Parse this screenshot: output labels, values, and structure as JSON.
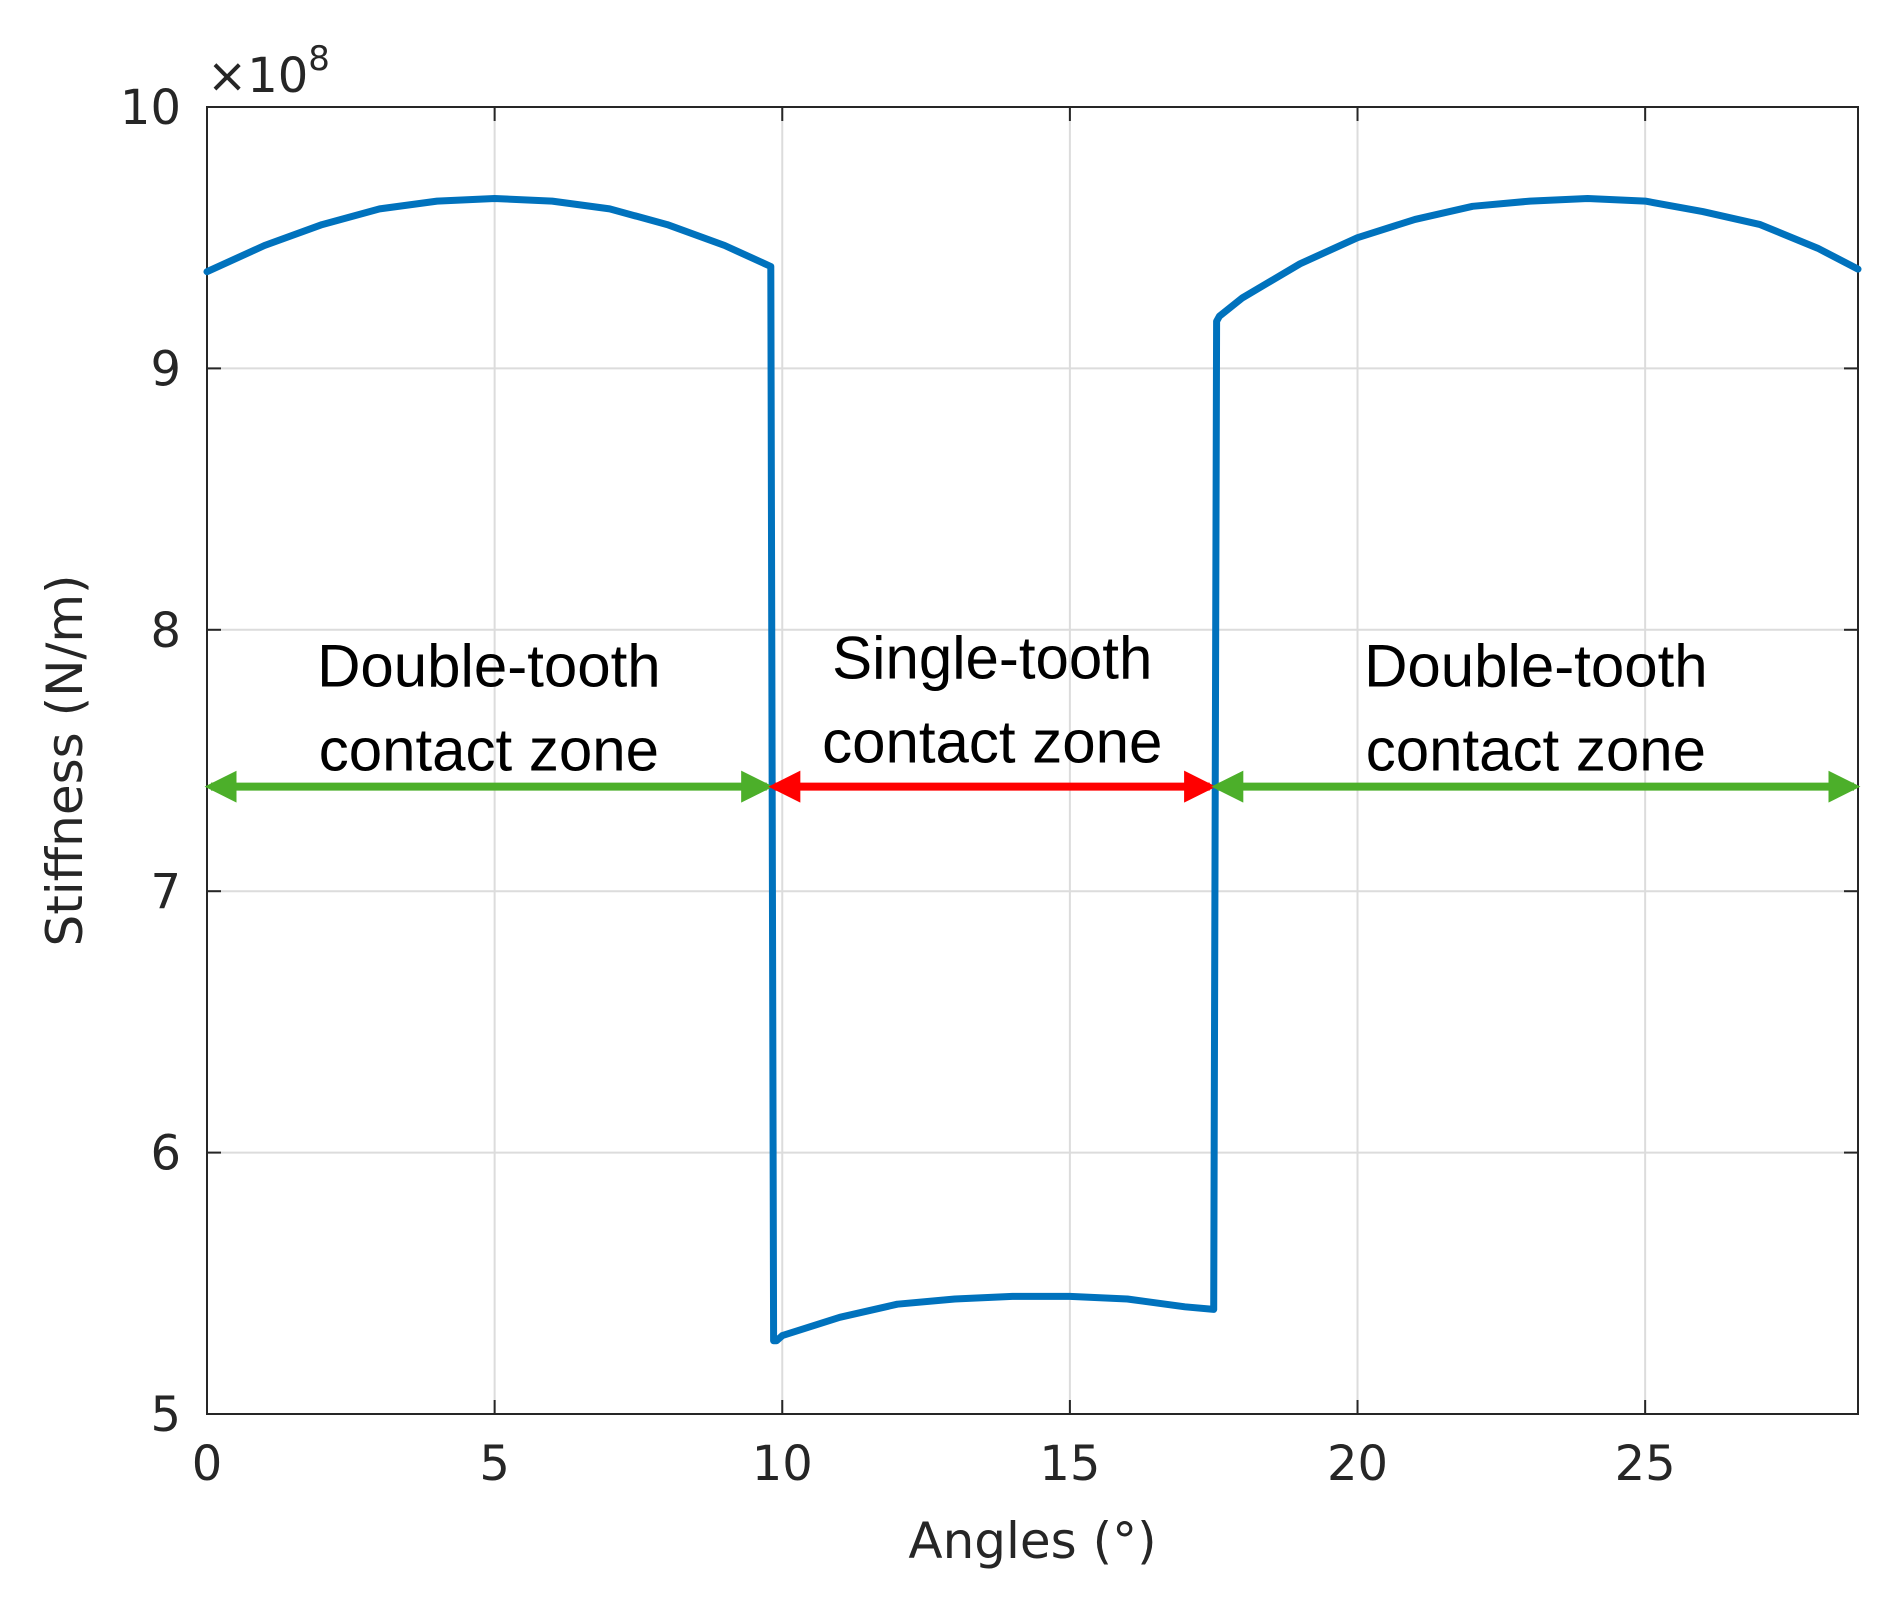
{
  "chart_data": {
    "type": "line",
    "xlabel": "Angles (°)",
    "ylabel": "Stiffness (N/m)",
    "y_exponent_label": "×10",
    "y_exponent_power": "8",
    "xlim": [
      0,
      28.7
    ],
    "ylim": [
      5,
      10
    ],
    "x_ticks": [
      0,
      5,
      10,
      15,
      20,
      25
    ],
    "y_ticks": [
      5,
      6,
      7,
      8,
      9,
      10
    ],
    "grid": true,
    "series": [
      {
        "color": "#0072BD",
        "x": [
          0,
          1,
          2,
          3,
          4,
          5,
          6,
          7,
          8,
          9,
          9.8,
          9.85,
          9.9,
          10,
          11,
          12,
          13,
          14,
          15,
          16,
          17,
          17.5,
          17.55,
          17.6,
          18,
          19,
          20,
          21,
          22,
          23,
          24,
          25,
          26,
          27,
          28,
          28.7
        ],
        "y": [
          9.37,
          9.47,
          9.55,
          9.61,
          9.64,
          9.65,
          9.64,
          9.61,
          9.55,
          9.47,
          9.39,
          5.28,
          5.28,
          5.3,
          5.37,
          5.42,
          5.44,
          5.45,
          5.45,
          5.44,
          5.41,
          5.4,
          9.18,
          9.2,
          9.27,
          9.4,
          9.5,
          9.57,
          9.62,
          9.64,
          9.65,
          9.64,
          9.6,
          9.55,
          9.46,
          9.38
        ]
      }
    ],
    "annotations": [
      {
        "text_line1": "Double-tooth",
        "text_line2": "contact zone",
        "x_from": 0,
        "x_to": 9.8,
        "y": 7.4,
        "arrow_color": "#4CAF2A"
      },
      {
        "text_line1": "Single-tooth",
        "text_line2": "contact zone",
        "x_from": 9.8,
        "x_to": 17.5,
        "y": 7.4,
        "arrow_color": "#FF0000"
      },
      {
        "text_line1": "Double-tooth",
        "text_line2": "contact zone",
        "x_from": 17.5,
        "x_to": 28.7,
        "y": 7.4,
        "arrow_color": "#4CAF2A"
      }
    ]
  }
}
